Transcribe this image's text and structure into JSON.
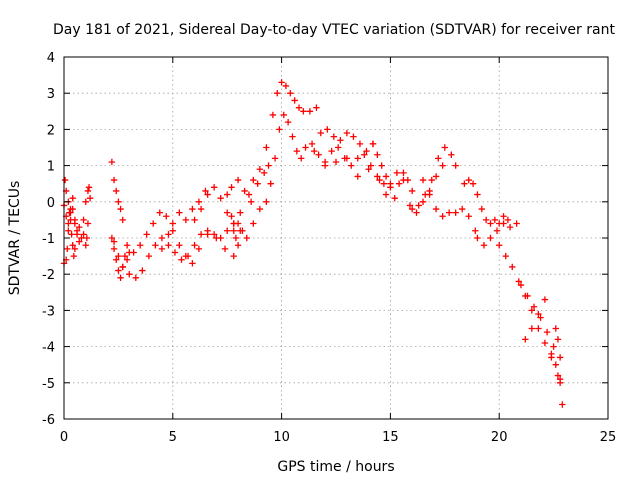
{
  "chart_data": {
    "type": "scatter",
    "title": "Day 181 of 2021, Sidereal Day-to-day VTEC variation (SDTVAR) for receiver rant",
    "xlabel": "GPS time / hours",
    "ylabel": "SDTVAR / TECUs",
    "xlim": [
      0,
      25
    ],
    "ylim": [
      -6,
      4
    ],
    "xticks": [
      0,
      5,
      10,
      15,
      20,
      25
    ],
    "yticks": [
      -6,
      -5,
      -4,
      -3,
      -2,
      -1,
      0,
      1,
      2,
      3,
      4
    ],
    "grid": true,
    "marker": "+",
    "color": "#ff0000",
    "series": [
      {
        "name": "SDTVAR",
        "x": [
          0.0,
          0.1,
          0.15,
          0.2,
          0.25,
          0.3,
          0.35,
          0.4,
          0.45,
          0.5,
          0.05,
          0.1,
          0.2,
          0.3,
          0.4,
          0.5,
          0.6,
          0.7,
          0.8,
          0.9,
          1.0,
          1.05,
          1.1,
          0.0,
          0.1,
          0.2,
          0.3,
          0.4,
          0.5,
          0.6,
          0.7,
          0.9,
          1.0,
          1.1,
          1.15,
          1.2,
          2.2,
          2.3,
          2.4,
          2.5,
          2.6,
          2.7,
          2.2,
          2.3,
          2.4,
          2.5,
          2.6,
          2.7,
          2.8,
          2.9,
          3.0,
          2.3,
          2.5,
          2.7,
          3.0,
          3.3,
          3.6,
          3.9,
          4.2,
          4.5,
          4.8,
          5.0,
          5.3,
          5.6,
          5.9,
          6.2,
          6.5,
          2.9,
          3.2,
          3.5,
          3.8,
          4.1,
          4.4,
          4.7,
          5.0,
          5.3,
          5.6,
          5.9,
          6.2,
          6.6,
          7.0,
          7.4,
          7.8,
          8.0,
          8.2,
          4.5,
          4.8,
          5.1,
          5.4,
          5.7,
          6.0,
          6.3,
          6.6,
          6.9,
          7.2,
          7.5,
          7.8,
          6.0,
          6.3,
          6.6,
          6.9,
          7.2,
          7.5,
          7.8,
          8.1,
          8.4,
          8.7,
          9.0,
          9.3,
          7.7,
          7.8,
          7.9,
          8.0,
          8.1,
          7.5,
          7.7,
          8.0,
          8.3,
          8.6,
          8.9,
          9.2,
          9.4,
          8.5,
          8.7,
          9.0,
          9.3,
          9.6,
          9.8,
          10.0,
          10.2,
          10.4,
          10.6,
          10.8,
          11.0,
          11.3,
          11.6,
          9.5,
          9.7,
          9.9,
          10.1,
          10.3,
          10.5,
          10.7,
          10.9,
          11.1,
          11.4,
          11.7,
          12.0,
          12.3,
          12.6,
          12.9,
          13.2,
          13.5,
          13.8,
          14.1,
          14.4,
          14.7,
          11.5,
          11.8,
          12.1,
          12.4,
          12.7,
          13.0,
          13.3,
          13.6,
          13.9,
          14.2,
          12.0,
          12.5,
          13.0,
          13.5,
          14.0,
          14.5,
          14.8,
          14.2,
          14.4,
          14.6,
          14.8,
          15.0,
          15.2,
          15.4,
          15.6,
          15.8,
          16.0,
          15.0,
          15.3,
          15.6,
          15.9,
          16.2,
          16.5,
          16.8,
          17.1,
          17.4,
          16.0,
          16.3,
          16.6,
          16.9,
          17.2,
          17.5,
          17.8,
          18.0,
          16.5,
          16.8,
          17.1,
          17.4,
          17.7,
          18.0,
          18.3,
          18.6,
          18.9,
          18.4,
          18.6,
          18.8,
          19.0,
          19.2,
          19.4,
          19.6,
          19.8,
          20.0,
          20.2,
          20.4,
          19.0,
          19.3,
          19.6,
          19.9,
          20.2,
          20.5,
          20.8,
          20.0,
          20.3,
          20.6,
          20.9,
          21.2,
          21.5,
          21.8,
          22.1,
          22.4,
          22.7,
          21.0,
          21.3,
          21.6,
          21.9,
          22.2,
          22.5,
          22.8,
          21.2,
          21.5,
          21.8,
          22.1,
          22.4,
          22.6,
          22.8,
          22.6,
          22.7,
          22.8,
          22.9
        ],
        "y": [
          -1.7,
          -1.6,
          -1.3,
          -0.8,
          -0.3,
          -0.5,
          -0.9,
          -1.2,
          -1.5,
          -1.3,
          0.6,
          0.3,
          0.0,
          -0.3,
          -0.2,
          -0.6,
          -0.8,
          -0.7,
          -1.0,
          -0.9,
          -1.2,
          -1.0,
          -0.6,
          -0.1,
          -0.4,
          -0.6,
          -0.2,
          0.1,
          -0.5,
          -0.9,
          -1.1,
          -0.5,
          0.0,
          0.3,
          0.4,
          0.1,
          1.1,
          0.6,
          0.3,
          0.0,
          -0.2,
          -0.5,
          -1.0,
          -1.3,
          -1.6,
          -1.9,
          -2.1,
          -1.8,
          -1.5,
          -1.2,
          -1.4,
          -1.1,
          -1.5,
          -1.8,
          -2.0,
          -2.1,
          -1.9,
          -1.5,
          -1.2,
          -1.3,
          -0.9,
          -0.6,
          -0.3,
          -0.5,
          -0.2,
          0.0,
          0.3,
          -1.6,
          -1.4,
          -1.2,
          -0.9,
          -0.6,
          -0.3,
          -0.4,
          -0.8,
          -1.2,
          -1.5,
          -1.7,
          -1.3,
          -0.9,
          -1.0,
          -1.3,
          -1.5,
          -1.2,
          -0.8,
          -1.0,
          -1.2,
          -1.4,
          -1.6,
          -1.5,
          -1.2,
          -0.9,
          -0.8,
          -0.9,
          -1.0,
          -0.8,
          -0.6,
          -0.5,
          -0.2,
          0.2,
          0.4,
          0.1,
          -0.3,
          -0.6,
          -0.8,
          -1.0,
          -0.6,
          -0.2,
          0.0,
          -0.4,
          -0.8,
          -1.0,
          -0.6,
          -0.3,
          0.2,
          0.4,
          0.6,
          0.3,
          0.0,
          0.5,
          0.8,
          1.0,
          0.2,
          0.6,
          0.9,
          1.5,
          2.4,
          3.0,
          3.3,
          3.2,
          3.0,
          2.8,
          2.6,
          2.5,
          2.5,
          2.6,
          0.5,
          1.2,
          2.0,
          2.4,
          2.2,
          1.8,
          1.4,
          1.2,
          1.5,
          1.6,
          1.3,
          1.1,
          1.4,
          1.5,
          1.2,
          1.0,
          1.2,
          1.3,
          1.0,
          0.7,
          0.5,
          1.4,
          1.9,
          2.0,
          1.8,
          1.7,
          1.9,
          1.8,
          1.6,
          1.4,
          1.6,
          1.0,
          1.1,
          1.2,
          0.7,
          0.9,
          0.6,
          0.2,
          1.6,
          1.3,
          1.0,
          0.7,
          0.4,
          0.1,
          0.5,
          0.8,
          0.6,
          0.3,
          0.5,
          0.8,
          0.6,
          -0.1,
          -0.3,
          0.0,
          0.3,
          0.7,
          1.0,
          -0.2,
          -0.1,
          0.2,
          0.6,
          1.2,
          1.5,
          1.3,
          1.0,
          0.6,
          0.2,
          -0.2,
          -0.4,
          -0.3,
          -0.3,
          -0.2,
          -0.4,
          -0.8,
          0.5,
          0.6,
          0.5,
          0.2,
          -0.2,
          -0.5,
          -0.6,
          -0.5,
          -0.6,
          -0.4,
          -0.5,
          -1.0,
          -1.2,
          -1.0,
          -0.8,
          -0.6,
          -0.7,
          -0.6,
          -1.2,
          -1.5,
          -1.8,
          -2.2,
          -2.6,
          -3.0,
          -3.5,
          -3.9,
          -4.3,
          -4.8,
          -2.3,
          -2.6,
          -2.9,
          -3.2,
          -3.6,
          -4.0,
          -4.3,
          -3.8,
          -3.5,
          -3.1,
          -2.7,
          -4.2,
          -4.5,
          -5.0,
          -3.5,
          -3.8,
          -4.9,
          -5.6
        ]
      }
    ]
  }
}
